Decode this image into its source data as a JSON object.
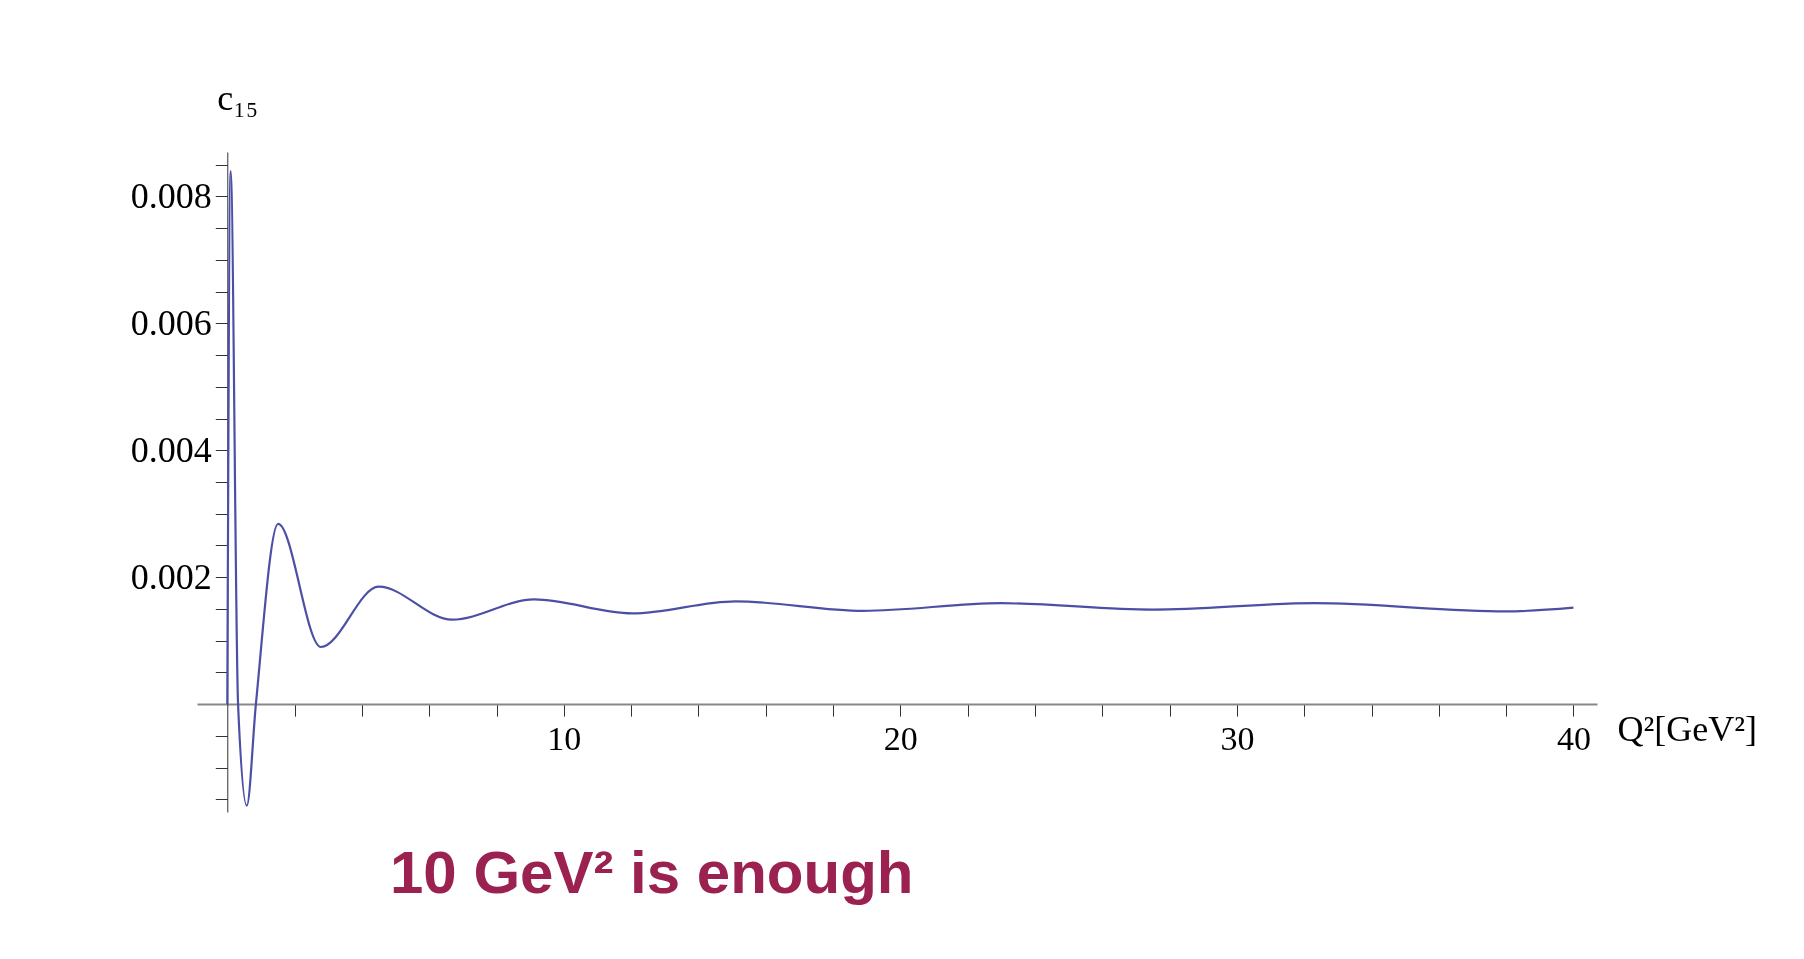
{
  "chart_data": {
    "type": "line",
    "ylabel": "c₁₅",
    "xlabel": "Q²[GeV²]",
    "x": [
      0,
      0.1,
      0.32,
      0.58,
      0.85,
      1.51,
      2.78,
      4.5,
      6.68,
      9.12,
      12.03,
      15.1,
      18.9,
      23.0,
      27.5,
      32.3,
      38.0,
      40
    ],
    "series": [
      {
        "color": "#4b50a6",
        "values": [
          0.0,
          0.0084,
          0.0,
          -0.0016,
          0.0,
          0.00284,
          0.0009,
          0.00185,
          0.00133,
          0.00165,
          0.00143,
          0.00162,
          0.00147,
          0.00159,
          0.00149,
          0.00159,
          0.00146,
          0.00152
        ]
      }
    ],
    "xlim": [
      -0.9,
      40.7
    ],
    "ylim": [
      -0.0017,
      0.0087
    ],
    "xticks": [
      {
        "value": 2,
        "label": null
      },
      {
        "value": 4,
        "label": null
      },
      {
        "value": 6,
        "label": null
      },
      {
        "value": 8,
        "label": null
      },
      10,
      {
        "value": 12,
        "label": null
      },
      {
        "value": 14,
        "label": null
      },
      {
        "value": 16,
        "label": null
      },
      {
        "value": 18,
        "label": null
      },
      20,
      {
        "value": 22,
        "label": null
      },
      {
        "value": 24,
        "label": null
      },
      {
        "value": 26,
        "label": null
      },
      {
        "value": 28,
        "label": null
      },
      30,
      {
        "value": 32,
        "label": null
      },
      {
        "value": 34,
        "label": null
      },
      {
        "value": 36,
        "label": null
      },
      {
        "value": 38,
        "label": null
      },
      40
    ],
    "yticks": [
      {
        "value": -0.0015,
        "label": null
      },
      {
        "value": -0.001,
        "label": null
      },
      {
        "value": -0.0005,
        "label": null
      },
      {
        "value": 0.0005,
        "label": null
      },
      {
        "value": 0.001,
        "label": null
      },
      {
        "value": 0.0015,
        "label": null
      },
      0.002,
      {
        "value": 0.0025,
        "label": null
      },
      {
        "value": 0.003,
        "label": null
      },
      {
        "value": 0.0035,
        "label": null
      },
      0.004,
      {
        "value": 0.0045,
        "label": null
      },
      {
        "value": 0.005,
        "label": null
      },
      {
        "value": 0.0055,
        "label": null
      },
      0.006,
      {
        "value": 0.0065,
        "label": null
      },
      {
        "value": 0.007,
        "label": null
      },
      {
        "value": 0.0075,
        "label": null
      },
      0.008,
      {
        "value": 0.0085,
        "label": null
      }
    ],
    "grid": false,
    "legend": false,
    "marker": "none",
    "line_style": "solid",
    "annotations": [
      "10 GeV² is enough"
    ]
  }
}
